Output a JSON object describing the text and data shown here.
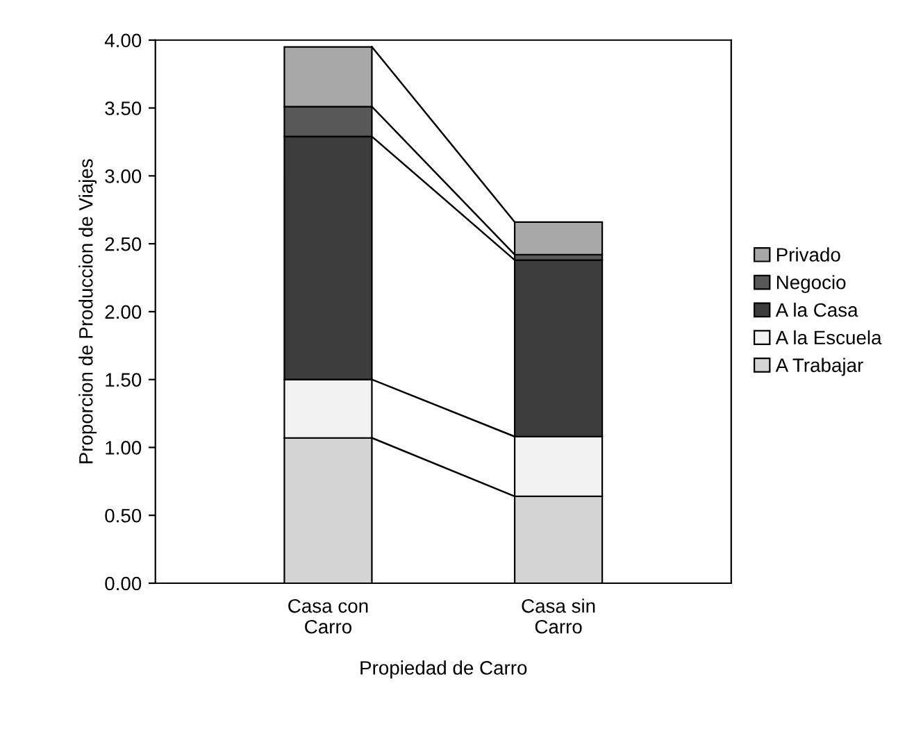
{
  "chart_data": {
    "type": "bar",
    "stacked": true,
    "xlabel": "Propiedad de Carro",
    "ylabel": "Proporcion de Produccion de Viajes",
    "categories": [
      "Casa con\nCarro",
      "Casa sin\nCarro"
    ],
    "series": [
      {
        "name": "A Trabajar",
        "color": "#d4d4d4",
        "values": [
          1.07,
          0.64
        ]
      },
      {
        "name": "A la Escuela",
        "color": "#f2f2f2",
        "values": [
          0.43,
          0.44
        ]
      },
      {
        "name": "A la Casa",
        "color": "#3c3c3c",
        "values": [
          1.79,
          1.3
        ]
      },
      {
        "name": "Negocio",
        "color": "#585858",
        "values": [
          0.22,
          0.04
        ]
      },
      {
        "name": "Privado",
        "color": "#a8a8a8",
        "values": [
          0.44,
          0.24
        ]
      }
    ],
    "ylim": [
      0,
      4
    ],
    "yticks": [
      {
        "value": 0,
        "label": "0.00"
      },
      {
        "value": 0.5,
        "label": "0.50"
      },
      {
        "value": 1,
        "label": "1.00"
      },
      {
        "value": 1.5,
        "label": "1.50"
      },
      {
        "value": 2,
        "label": "2.00"
      },
      {
        "value": 2.5,
        "label": "2.50"
      },
      {
        "value": 3,
        "label": "3.00"
      },
      {
        "value": 3.5,
        "label": "3.50"
      },
      {
        "value": 4,
        "label": "4.00"
      }
    ],
    "grid": false,
    "legend": "right"
  }
}
